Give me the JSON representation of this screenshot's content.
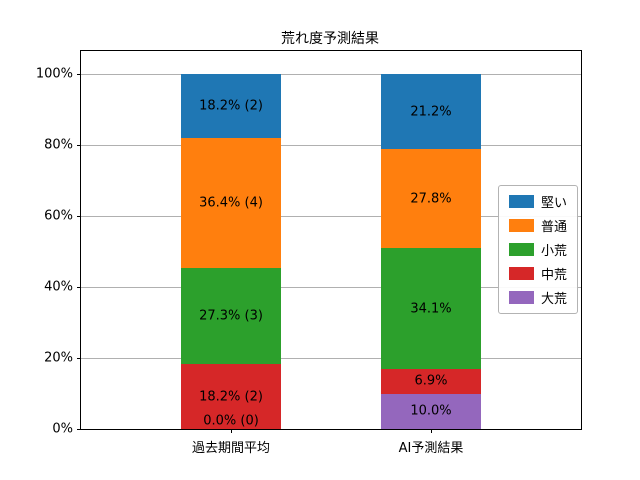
{
  "chart_data": {
    "type": "bar",
    "stacked": true,
    "title": "荒れ度予測結果",
    "xlabel": "",
    "ylabel": "",
    "ylim": [
      0,
      100
    ],
    "grid": true,
    "legend_position": "right",
    "categories": [
      "過去期間平均",
      "AI予測結果"
    ],
    "series": [
      {
        "name": "大荒",
        "color": "#9467bd",
        "values": [
          0.0,
          10.0
        ],
        "labels": [
          "0.0% (0)",
          "10.0%"
        ]
      },
      {
        "name": "中荒",
        "color": "#d62728",
        "values": [
          18.2,
          6.9
        ],
        "labels": [
          "18.2% (2)",
          "6.9%"
        ]
      },
      {
        "name": "小荒",
        "color": "#2ca02c",
        "values": [
          27.3,
          34.1
        ],
        "labels": [
          "27.3% (3)",
          "34.1%"
        ]
      },
      {
        "name": "普通",
        "color": "#ff7f0e",
        "values": [
          36.4,
          27.8
        ],
        "labels": [
          "36.4% (4)",
          "27.8%"
        ]
      },
      {
        "name": "堅い",
        "color": "#1f77b4",
        "values": [
          18.2,
          21.2
        ],
        "labels": [
          "18.2% (2)",
          "21.2%"
        ]
      }
    ],
    "legend": [
      "堅い",
      "普通",
      "小荒",
      "中荒",
      "大荒"
    ],
    "yticks": [
      {
        "value": 0,
        "label": "0%"
      },
      {
        "value": 20,
        "label": "20%"
      },
      {
        "value": 40,
        "label": "40%"
      },
      {
        "value": 60,
        "label": "60%"
      },
      {
        "value": 80,
        "label": "80%"
      },
      {
        "value": 100,
        "label": "100%"
      }
    ]
  }
}
